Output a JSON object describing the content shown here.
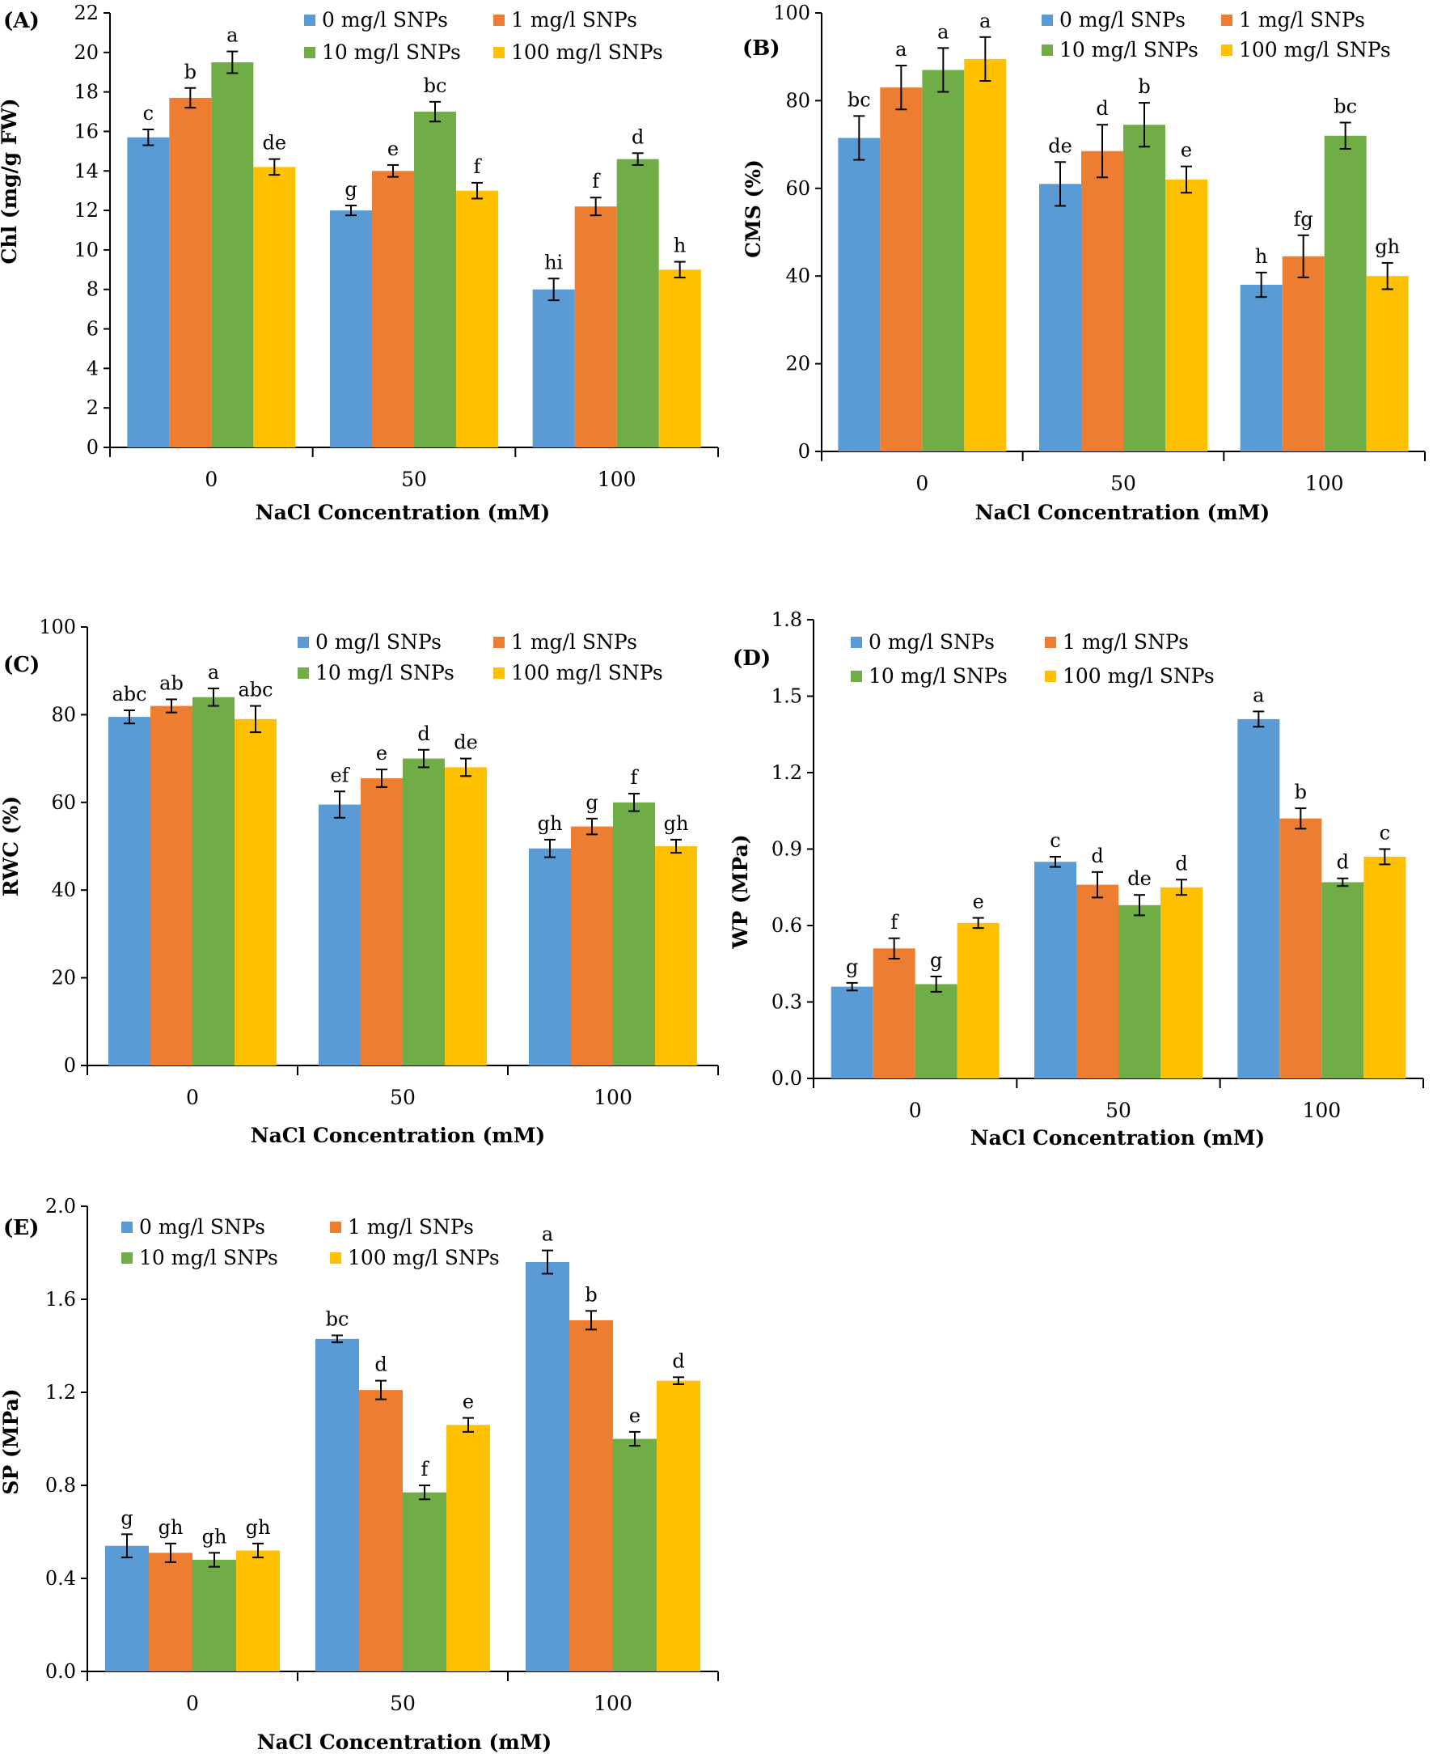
{
  "colors": {
    "series": [
      "#5B9BD5",
      "#ED7D31",
      "#70AD47",
      "#FFC000"
    ],
    "axis": "#000000",
    "background": "#ffffff"
  },
  "chart_data": [
    {
      "type": "bar",
      "panel_label": "(A)",
      "title": "",
      "xlabel": "NaCl Concentration (mM)",
      "ylabel": "Chl (mg/g FW)",
      "categories": [
        "0",
        "50",
        "100"
      ],
      "ylim": [
        0,
        22
      ],
      "yticks": [
        "0",
        "2",
        "4",
        "6",
        "8",
        "10",
        "12",
        "14",
        "16",
        "18",
        "20",
        "22"
      ],
      "grid": false,
      "legend_position": "top-right",
      "series": [
        {
          "name": "0 mg/l SNPs",
          "values": [
            15.7,
            12.0,
            8.0
          ],
          "errors": [
            0.4,
            0.25,
            0.55
          ],
          "letters": [
            "c",
            "g",
            "hi"
          ]
        },
        {
          "name": "1 mg/l SNPs",
          "values": [
            17.7,
            14.0,
            12.2
          ],
          "errors": [
            0.5,
            0.3,
            0.45
          ],
          "letters": [
            "b",
            "e",
            "f"
          ]
        },
        {
          "name": "10 mg/l SNPs",
          "values": [
            19.5,
            17.0,
            14.6
          ],
          "errors": [
            0.55,
            0.5,
            0.3
          ],
          "letters": [
            "a",
            "bc",
            "d"
          ]
        },
        {
          "name": "100 mg/l SNPs",
          "values": [
            14.2,
            13.0,
            9.0
          ],
          "errors": [
            0.4,
            0.4,
            0.4
          ],
          "letters": [
            "de",
            "f",
            "h"
          ]
        }
      ]
    },
    {
      "type": "bar",
      "panel_label": "(B)",
      "title": "",
      "xlabel": "NaCl Concentration (mM)",
      "ylabel": "CMS (%)",
      "categories": [
        "0",
        "50",
        "100"
      ],
      "ylim": [
        0,
        100
      ],
      "yticks": [
        "0",
        "20",
        "40",
        "60",
        "80",
        "100"
      ],
      "grid": false,
      "legend_position": "top-right",
      "series": [
        {
          "name": "0 mg/l SNPs",
          "values": [
            71.5,
            61.0,
            38.0
          ],
          "errors": [
            5.0,
            5.0,
            2.8
          ],
          "letters": [
            "bc",
            "de",
            "h"
          ]
        },
        {
          "name": "1 mg/l SNPs",
          "values": [
            83.0,
            68.5,
            44.5
          ],
          "errors": [
            5.0,
            6.0,
            4.8
          ],
          "letters": [
            "a",
            "d",
            "fg"
          ]
        },
        {
          "name": "10 mg/l SNPs",
          "values": [
            87.0,
            74.5,
            72.0
          ],
          "errors": [
            5.0,
            5.0,
            3.0
          ],
          "letters": [
            "a",
            "b",
            "bc"
          ]
        },
        {
          "name": "100 mg/l SNPs",
          "values": [
            89.5,
            62.0,
            40.0
          ],
          "errors": [
            5.0,
            3.0,
            3.0
          ],
          "letters": [
            "a",
            "e",
            "gh"
          ]
        }
      ]
    },
    {
      "type": "bar",
      "panel_label": "(C)",
      "title": "",
      "xlabel": "NaCl Concentration (mM)",
      "ylabel": "RWC (%)",
      "categories": [
        "0",
        "50",
        "100"
      ],
      "ylim": [
        0,
        100
      ],
      "yticks": [
        "0",
        "20",
        "40",
        "60",
        "80",
        "100"
      ],
      "grid": false,
      "legend_position": "top-right",
      "series": [
        {
          "name": "0 mg/l SNPs",
          "values": [
            79.5,
            59.5,
            49.5
          ],
          "errors": [
            1.5,
            3.0,
            2.0
          ],
          "letters": [
            "abc",
            "ef",
            "gh"
          ]
        },
        {
          "name": "1 mg/l SNPs",
          "values": [
            82.0,
            65.5,
            54.5
          ],
          "errors": [
            1.5,
            2.0,
            1.8
          ],
          "letters": [
            "ab",
            "e",
            "g"
          ]
        },
        {
          "name": "10 mg/l SNPs",
          "values": [
            84.0,
            70.0,
            60.0
          ],
          "errors": [
            2.0,
            2.0,
            2.0
          ],
          "letters": [
            "a",
            "d",
            "f"
          ]
        },
        {
          "name": "100 mg/l SNPs",
          "values": [
            79.0,
            68.0,
            50.0
          ],
          "errors": [
            3.0,
            2.0,
            1.5
          ],
          "letters": [
            "abc",
            "de",
            "gh"
          ]
        }
      ]
    },
    {
      "type": "bar",
      "panel_label": "(D)",
      "title": "",
      "xlabel": "NaCl Concentration (mM)",
      "ylabel": "WP (MPa)",
      "categories": [
        "0",
        "50",
        "100"
      ],
      "ylim": [
        0,
        1.8
      ],
      "yticks": [
        "0.0",
        "0.3",
        "0.6",
        "0.9",
        "1.2",
        "1.5",
        "1.8"
      ],
      "grid": false,
      "legend_position": "top-right",
      "series": [
        {
          "name": "0 mg/l SNPs",
          "values": [
            0.36,
            0.85,
            1.41
          ],
          "errors": [
            0.015,
            0.02,
            0.03
          ],
          "letters": [
            "g",
            "c",
            "a"
          ]
        },
        {
          "name": "1 mg/l SNPs",
          "values": [
            0.51,
            0.76,
            1.02
          ],
          "errors": [
            0.04,
            0.05,
            0.04
          ],
          "letters": [
            "f",
            "d",
            "b"
          ]
        },
        {
          "name": "10 mg/l SNPs",
          "values": [
            0.37,
            0.68,
            0.77
          ],
          "errors": [
            0.03,
            0.04,
            0.015
          ],
          "letters": [
            "g",
            "de",
            "d"
          ]
        },
        {
          "name": "100 mg/l SNPs",
          "values": [
            0.61,
            0.75,
            0.87
          ],
          "errors": [
            0.02,
            0.03,
            0.03
          ],
          "letters": [
            "e",
            "d",
            "c"
          ]
        }
      ]
    },
    {
      "type": "bar",
      "panel_label": "(E)",
      "title": "",
      "xlabel": "NaCl Concentration (mM)",
      "ylabel": "SP (MPa)",
      "categories": [
        "0",
        "50",
        "100"
      ],
      "ylim": [
        0,
        2.0
      ],
      "yticks": [
        "0.0",
        "0.4",
        "0.8",
        "1.2",
        "1.6",
        "2.0"
      ],
      "grid": false,
      "legend_position": "top-left",
      "series": [
        {
          "name": "0 mg/l SNPs",
          "values": [
            0.54,
            1.43,
            1.76
          ],
          "errors": [
            0.05,
            0.015,
            0.05
          ],
          "letters": [
            "g",
            "bc",
            "a"
          ]
        },
        {
          "name": "1 mg/l SNPs",
          "values": [
            0.51,
            1.21,
            1.51
          ],
          "errors": [
            0.04,
            0.04,
            0.04
          ],
          "letters": [
            "gh",
            "d",
            "b"
          ]
        },
        {
          "name": "10 mg/l SNPs",
          "values": [
            0.48,
            0.77,
            1.0
          ],
          "errors": [
            0.03,
            0.03,
            0.03
          ],
          "letters": [
            "gh",
            "f",
            "e"
          ]
        },
        {
          "name": "100 mg/l SNPs",
          "values": [
            0.52,
            1.06,
            1.25
          ],
          "errors": [
            0.03,
            0.03,
            0.015
          ],
          "letters": [
            "gh",
            "e",
            "d"
          ]
        }
      ]
    }
  ]
}
